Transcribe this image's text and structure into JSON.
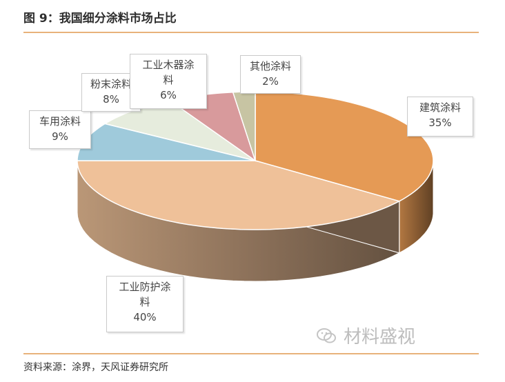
{
  "figure": {
    "title": "图 9：我国细分涂料市场占比",
    "source": "资料来源：涂界，天风证券研究所",
    "watermark": "材料盛视"
  },
  "chart_data": {
    "type": "pie",
    "title": "",
    "slices": [
      {
        "name": "建筑涂料",
        "value": 35,
        "label": "35%",
        "color": "#e59a55"
      },
      {
        "name": "工业防护涂料",
        "value": 40,
        "label": "40%",
        "color": "#efc199"
      },
      {
        "name": "车用涂料",
        "value": 9,
        "label": "9%",
        "color": "#9fcadb"
      },
      {
        "name": "粉末涂料",
        "value": 8,
        "label": "8%",
        "color": "#e6ecdd"
      },
      {
        "name": "工业木器涂料",
        "value": 6,
        "label": "6%",
        "color": "#d89a9c"
      },
      {
        "name": "其他涂料",
        "value": 2,
        "label": "2%",
        "color": "#c7c4a3"
      }
    ]
  },
  "callouts": [
    {
      "line1": "建筑涂料",
      "line2": "35%"
    },
    {
      "line1": "工业防护涂",
      "line2": "料",
      "line3": "40%"
    },
    {
      "line1": "车用涂料",
      "line2": "9%"
    },
    {
      "line1": "粉末涂料",
      "line2": "8%"
    },
    {
      "line1": "工业木器涂",
      "line2": "料",
      "line3": "6%"
    },
    {
      "line1": "其他涂料",
      "line2": "2%"
    }
  ]
}
